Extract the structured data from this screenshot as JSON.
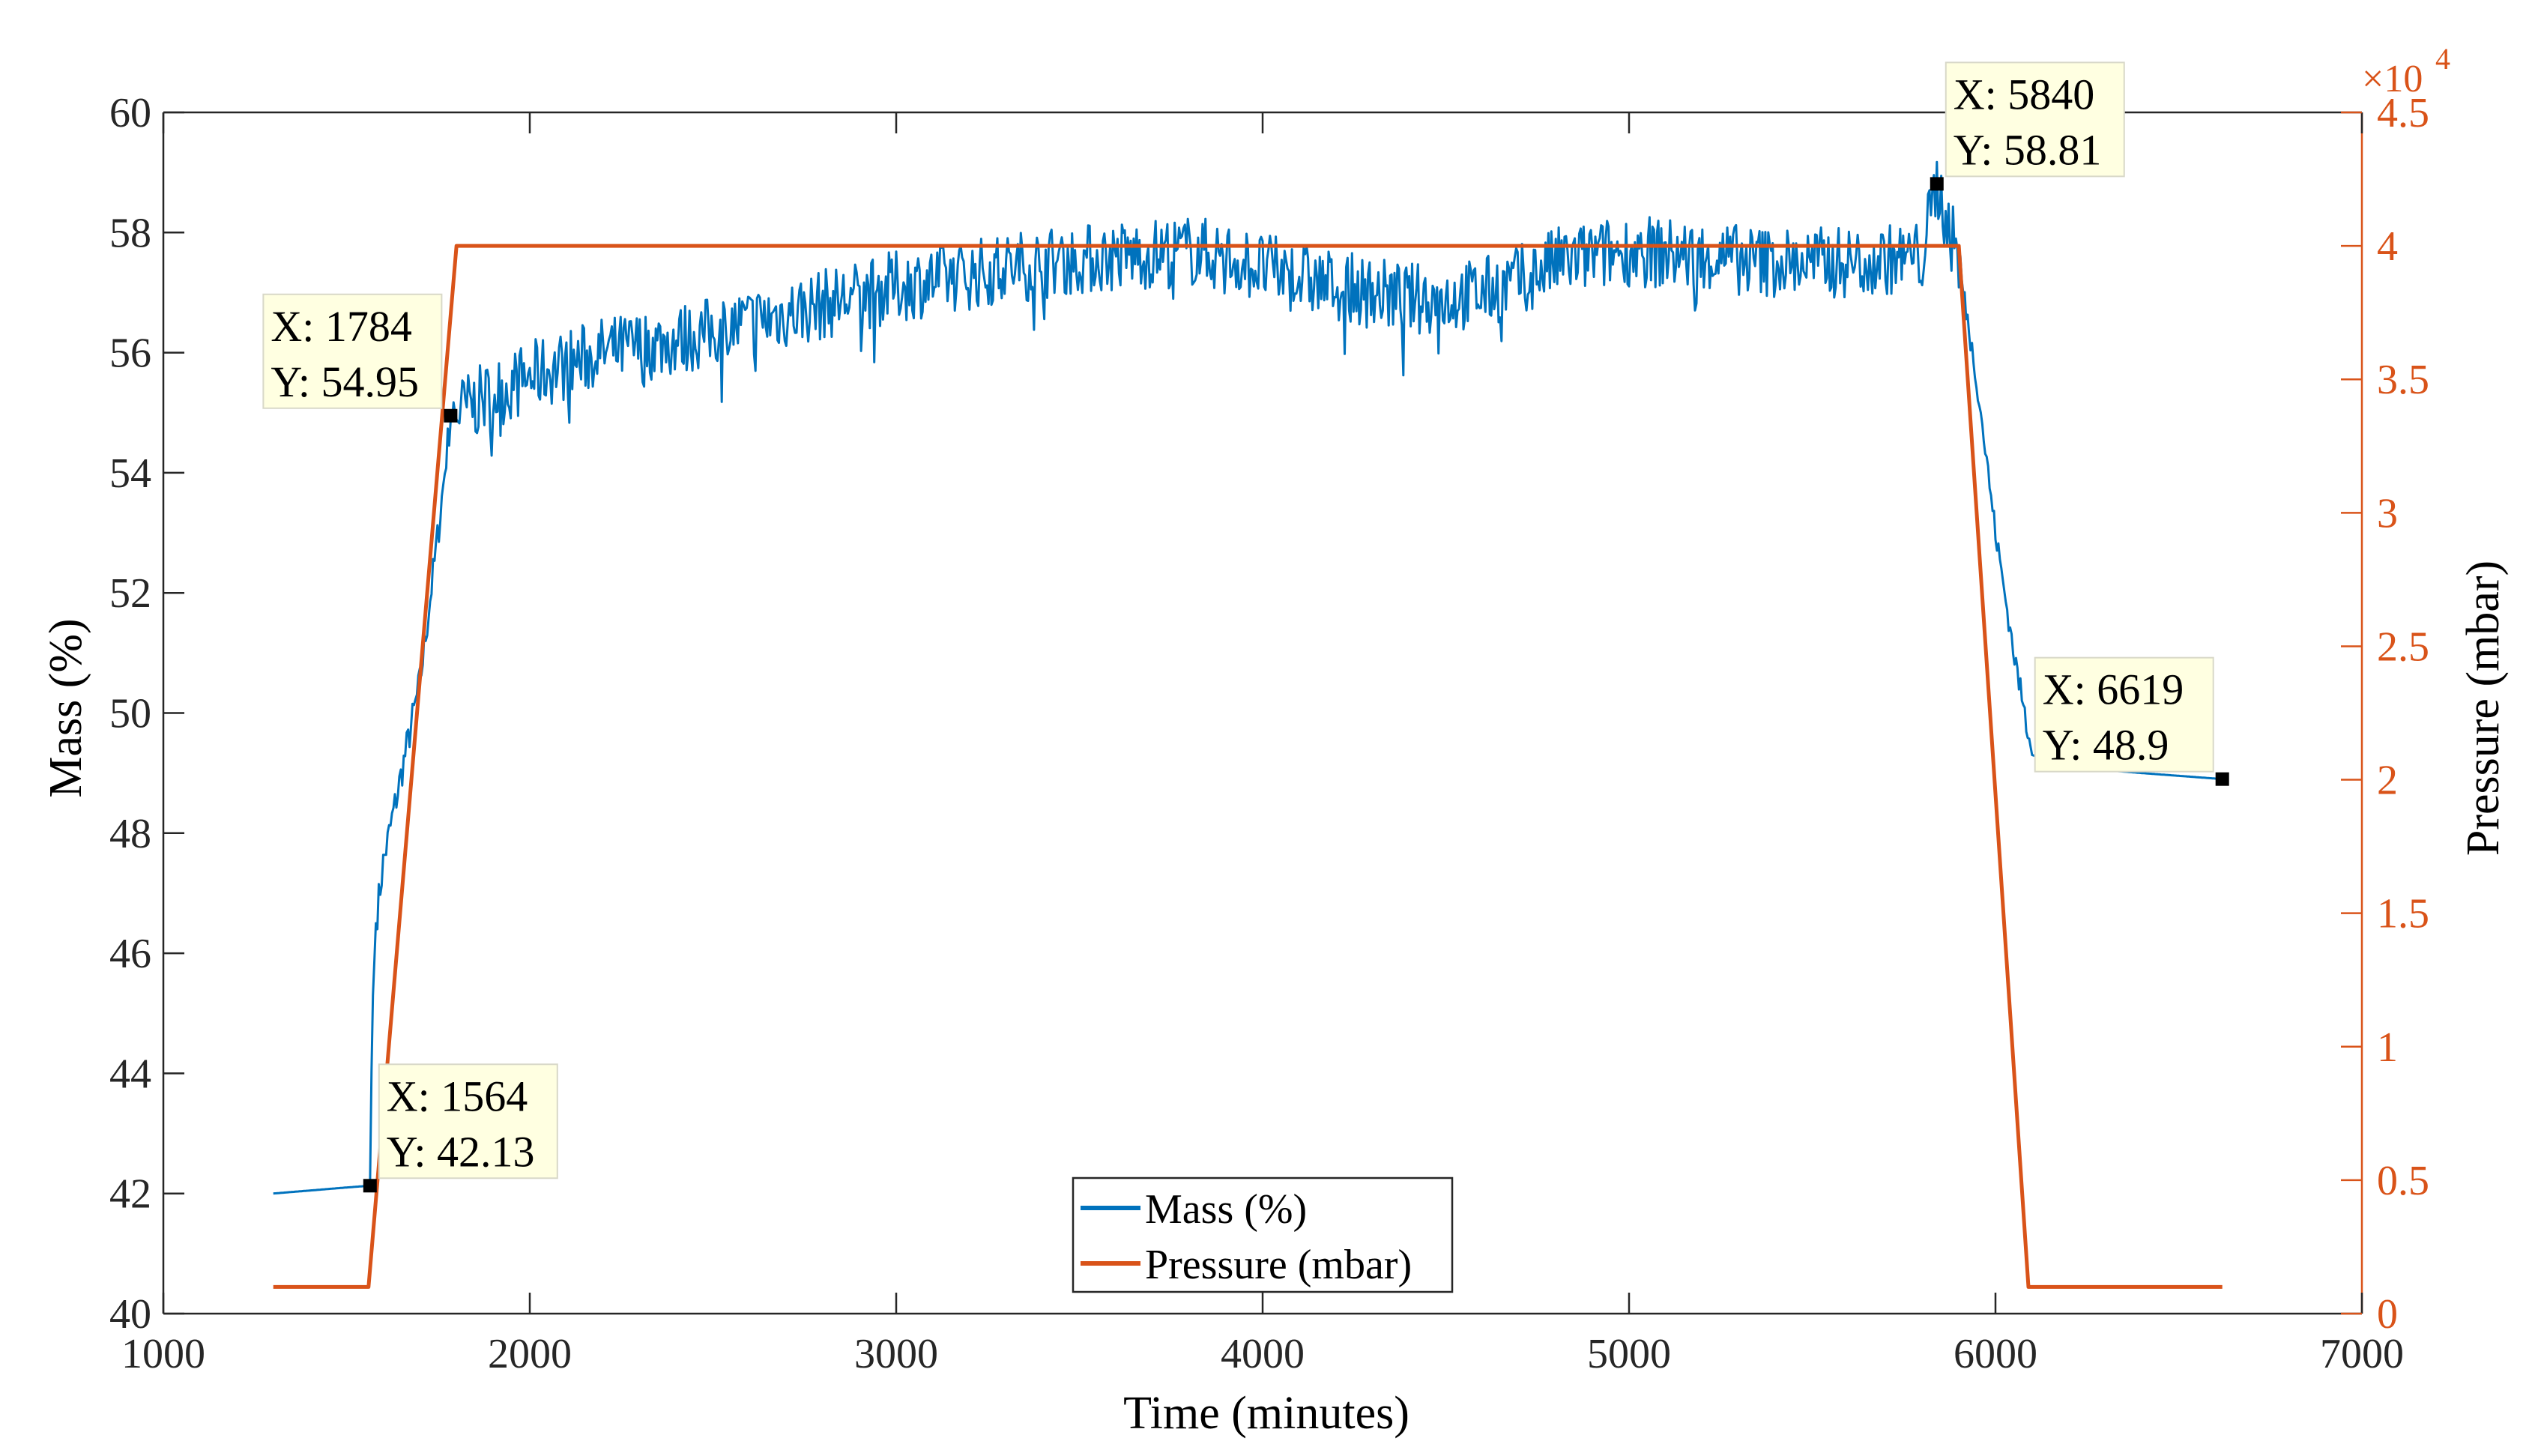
{
  "chart_data": {
    "type": "line",
    "title": "",
    "xlabel": "Time (minutes)",
    "ylabel_left": "Mass (%)",
    "ylabel_right": "Pressure (mbar)",
    "right_axis_exponent_base": "×10",
    "right_axis_exponent_power": "4",
    "xlim": [
      1000,
      7000
    ],
    "ylim_left": [
      40,
      60
    ],
    "ylim_right": [
      0,
      4.5
    ],
    "x_ticks": [
      "1000",
      "2000",
      "3000",
      "4000",
      "5000",
      "6000",
      "7000"
    ],
    "x_tick_values": [
      1000,
      2000,
      3000,
      4000,
      5000,
      6000,
      7000
    ],
    "y_left_ticks": [
      "40",
      "42",
      "44",
      "46",
      "48",
      "50",
      "52",
      "54",
      "56",
      "58",
      "60"
    ],
    "y_left_tick_values": [
      40,
      42,
      44,
      46,
      48,
      50,
      52,
      54,
      56,
      58,
      60
    ],
    "y_right_ticks": [
      "0",
      "0.5",
      "1",
      "1.5",
      "2",
      "2.5",
      "3",
      "3.5",
      "4",
      "4.5"
    ],
    "y_right_tick_values": [
      0,
      0.5,
      1,
      1.5,
      2,
      2.5,
      3,
      3.5,
      4,
      4.5
    ],
    "grid": false,
    "legend_position": "bottom-center",
    "series": [
      {
        "name": "Mass (%)",
        "axis": "left",
        "color": "#0072BD",
        "x": [
          1300,
          1400,
          1500,
          1564,
          1570,
          1580,
          1600,
          1650,
          1700,
          1750,
          1784,
          1800,
          1900,
          2000,
          2200,
          2400,
          2600,
          2800,
          3000,
          3200,
          3400,
          3600,
          3800,
          3900,
          4000,
          4200,
          4400,
          4500,
          4600,
          4700,
          4800,
          5000,
          5200,
          5400,
          5600,
          5800,
          5840,
          5900,
          5950,
          6000,
          6050,
          6100,
          6200,
          6400,
          6619
        ],
        "y": [
          42.0,
          42.05,
          42.1,
          42.13,
          45.0,
          46.5,
          47.5,
          49.0,
          50.5,
          53.0,
          54.95,
          55.0,
          55.3,
          55.6,
          56.0,
          56.2,
          56.5,
          56.8,
          57.1,
          57.3,
          57.5,
          57.6,
          57.7,
          57.6,
          57.4,
          57.1,
          56.9,
          56.9,
          57.0,
          57.2,
          57.5,
          57.7,
          57.6,
          57.5,
          57.5,
          57.6,
          58.81,
          57.5,
          55.5,
          53.0,
          51.0,
          49.3,
          49.1,
          49.0,
          48.9
        ],
        "noise_amplitude_plateau": 0.6
      },
      {
        "name": "Pressure (mbar)",
        "axis": "right",
        "color": "#D95319",
        "x": [
          1300,
          1560,
          1800,
          5900,
          6090,
          6619
        ],
        "y": [
          0.1,
          0.1,
          4.0,
          4.0,
          0.1,
          0.1
        ]
      }
    ],
    "data_tips": [
      {
        "x": 1564,
        "y": 42.13,
        "line1": "X: 1564",
        "line2": "Y: 42.13",
        "placement": "upper-right"
      },
      {
        "x": 1784,
        "y": 54.95,
        "line1": "X: 1784",
        "line2": "Y: 54.95",
        "placement": "upper-left"
      },
      {
        "x": 5840,
        "y": 58.81,
        "line1": "X: 5840",
        "line2": "Y: 58.81",
        "placement": "upper-right"
      },
      {
        "x": 6619,
        "y": 48.9,
        "line1": "X: 6619",
        "line2": "Y: 48.9",
        "placement": "upper-left"
      }
    ],
    "legend": [
      {
        "label": "Mass (%)",
        "color": "#0072BD"
      },
      {
        "label": "Pressure (mbar)",
        "color": "#D95319"
      }
    ],
    "colors": {
      "left_axis": "#262626",
      "right_axis": "#D95319",
      "datatip_bg": "#FFFFE1",
      "datatip_border": "#D8D8C8"
    }
  }
}
